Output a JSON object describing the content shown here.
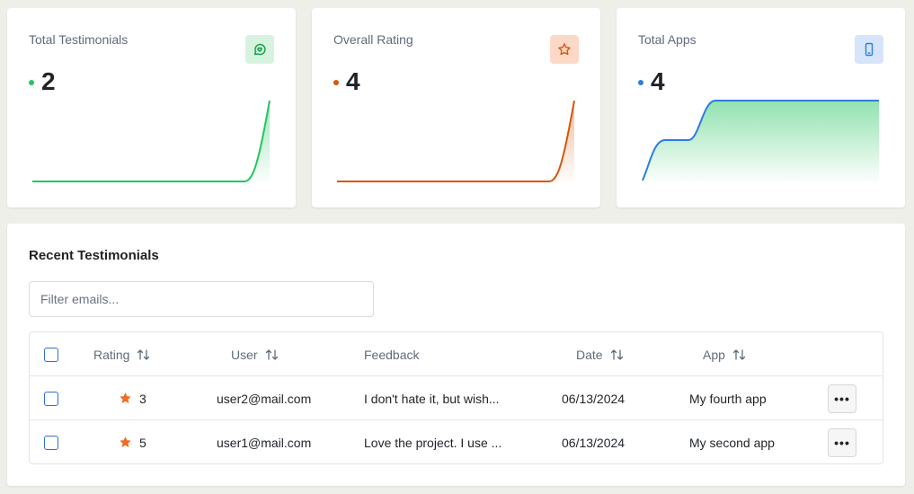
{
  "stats": [
    {
      "title": "Total Testimonials",
      "value": "2",
      "accent": "#22c55e",
      "badge_bg": "#d7f3df",
      "icon": "chat-heart-icon"
    },
    {
      "title": "Overall Rating",
      "value": "4",
      "accent": "#d9550a",
      "badge_bg": "#fcd9c7",
      "icon": "star-icon"
    },
    {
      "title": "Total Apps",
      "value": "4",
      "accent": "#2f7be0",
      "badge_bg": "#d7e5fa",
      "icon": "phone-icon"
    }
  ],
  "recent": {
    "title": "Recent Testimonials",
    "filter_placeholder": "Filter emails...",
    "columns": {
      "rating": "Rating",
      "user": "User",
      "feedback": "Feedback",
      "date": "Date",
      "app": "App"
    },
    "rows": [
      {
        "rating": "3",
        "user": "user2@mail.com",
        "feedback": "I don't hate it, but wish...",
        "date": "06/13/2024",
        "app": "My fourth app"
      },
      {
        "rating": "5",
        "user": "user1@mail.com",
        "feedback": "Love the project. I use ...",
        "date": "06/13/2024",
        "app": "My second app"
      }
    ],
    "more_label": "•••"
  },
  "colors": {
    "star": "#f26b22",
    "checkbox": "#2f6fd6"
  }
}
